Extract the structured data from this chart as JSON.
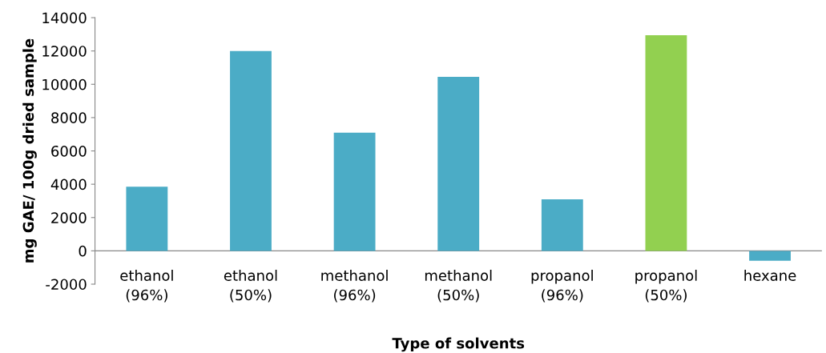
{
  "chart_data": {
    "type": "bar",
    "categories": [
      "ethanol\n(96%)",
      "ethanol\n(50%)",
      "methanol\n(96%)",
      "methanol\n(50%)",
      "propanol\n(96%)",
      "propanol\n(50%)",
      "hexane"
    ],
    "values": [
      3850,
      12000,
      7100,
      10450,
      3100,
      12950,
      -600
    ],
    "colors": [
      "#4bacc6",
      "#4bacc6",
      "#4bacc6",
      "#4bacc6",
      "#4bacc6",
      "#92d050",
      "#4bacc6"
    ],
    "xlabel": "Type of solvents",
    "ylabel": "mg GAE/ 100g dried sample",
    "ylim": [
      -2000,
      14000
    ],
    "yticks": [
      -2000,
      0,
      2000,
      4000,
      6000,
      8000,
      10000,
      12000,
      14000
    ],
    "grid": false
  }
}
